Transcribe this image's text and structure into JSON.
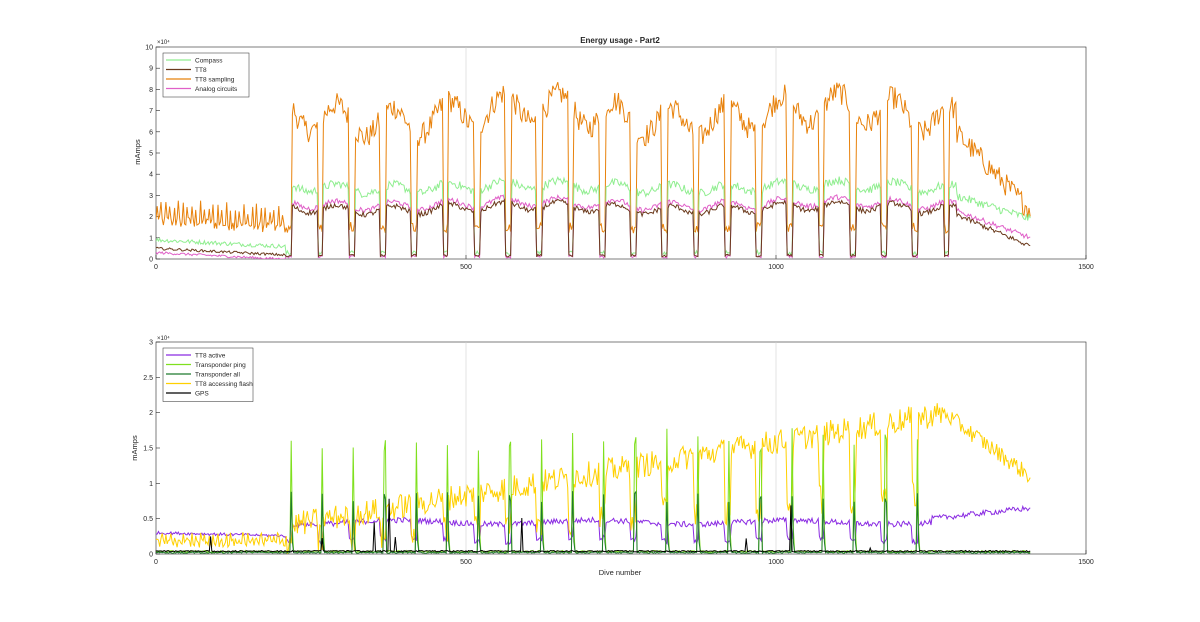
{
  "figure": {
    "background": "#ffffff"
  },
  "chart_data": [
    {
      "type": "line",
      "title": "Energy usage - Part2",
      "xlabel": "",
      "ylabel": "mAmps",
      "xlim": [
        0,
        1500
      ],
      "ylim": [
        0,
        10
      ],
      "y_exponent": "×10⁴",
      "x_ticks": [
        "0",
        "500",
        "1000",
        "1500"
      ],
      "y_ticks": [
        "0",
        "1",
        "2",
        "3",
        "4",
        "5",
        "6",
        "7",
        "8",
        "9",
        "10"
      ],
      "grid": "x",
      "legend_location": "top-left",
      "series": [
        {
          "name": "Compass",
          "color": "#90ee90",
          "profile": "lower",
          "low": 0.2,
          "base": 0.9,
          "high": 3.4,
          "noise": 0.2,
          "end": 1.9
        },
        {
          "name": "TT8",
          "color": "#6b3a1c",
          "profile": "lower",
          "low": 0.1,
          "base": 0.5,
          "high": 2.4,
          "noise": 0.12,
          "end": 0.6
        },
        {
          "name": "TT8 sampling",
          "color": "#e8820c",
          "profile": "upper",
          "low": 1.2,
          "base": 1.8,
          "high": 6.8,
          "noise": 0.55,
          "end": 2.3
        },
        {
          "name": "Analog circuits",
          "color": "#e060c8",
          "profile": "lower",
          "low": 0.05,
          "base": 0.3,
          "high": 2.6,
          "noise": 0.12,
          "end": 1.0
        }
      ]
    },
    {
      "type": "line",
      "title": "",
      "xlabel": "Dive number",
      "ylabel": "mAmps",
      "xlim": [
        0,
        1500
      ],
      "ylim": [
        0,
        3
      ],
      "y_exponent": "×10⁴",
      "x_ticks": [
        "0",
        "500",
        "1000",
        "1500"
      ],
      "y_ticks": [
        "0",
        "0.5",
        "1",
        "1.5",
        "2",
        "2.5",
        "3"
      ],
      "grid": "x",
      "legend_location": "top-left",
      "series": [
        {
          "name": "TT8 active",
          "color": "#8a2be2",
          "profile": "flatrise",
          "base": 0.3,
          "high": 0.5,
          "noise": 0.04,
          "end": 0.65
        },
        {
          "name": "Transponder ping",
          "color": "#7fe01e",
          "profile": "spikes",
          "base": 0.02,
          "high": 1.7,
          "noise": 0.03,
          "end": 0.2
        },
        {
          "name": "Transponder all",
          "color": "#1f7a2e",
          "profile": "spikes-low",
          "base": 0.01,
          "high": 0.85,
          "noise": 0.02,
          "end": 0.1
        },
        {
          "name": "TT8 accessing flash",
          "color": "#ffd000",
          "profile": "flash",
          "base": 0.15,
          "high": 1.9,
          "noise": 0.12,
          "end": 0.9
        },
        {
          "name": "GPS",
          "color": "#000000",
          "profile": "gps",
          "base": 0.03,
          "high": 0.08,
          "noise": 0.02,
          "end": 0.02
        }
      ]
    }
  ]
}
